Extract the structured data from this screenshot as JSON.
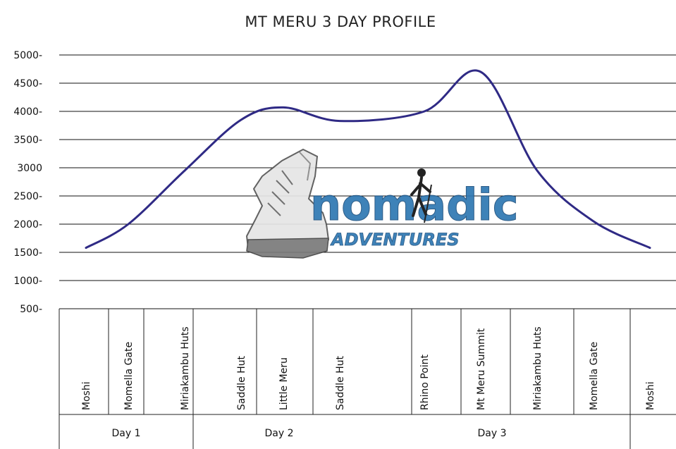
{
  "chart_data": {
    "type": "line",
    "title": "MT MERU 3 DAY PROFILE",
    "xlabel": "",
    "ylabel": "",
    "ylim": [
      500,
      5000
    ],
    "grid": true,
    "y_ticks": [
      "5000-",
      "4500-",
      "4000-",
      "3500-",
      "3000",
      "2500-",
      "2000-",
      "1500-",
      "1000-",
      "500-"
    ],
    "y_tick_values": [
      5000,
      4500,
      4000,
      3500,
      3000,
      2500,
      2000,
      1500,
      1000,
      500
    ],
    "categories": [
      "Moshi",
      "Momella Gate",
      "Miriakambu Huts",
      "Saddle Hut",
      "Little Meru",
      "Saddle Hut",
      "Rhino Point",
      "Mt Meru Summit",
      "Miriakambu Huts",
      "Momella Gate",
      "Moshi"
    ],
    "series": [
      {
        "values": [
          1580,
          2000,
          2950,
          3850,
          4070,
          3830,
          4000,
          4700,
          2950,
          2050,
          1580
        ]
      }
    ],
    "days": [
      "Day 1",
      "Day 2",
      "Day 3"
    ],
    "line_color": "#2f2a85"
  },
  "logo": {
    "word": "nomadic",
    "sub": "ADVENTURES"
  }
}
